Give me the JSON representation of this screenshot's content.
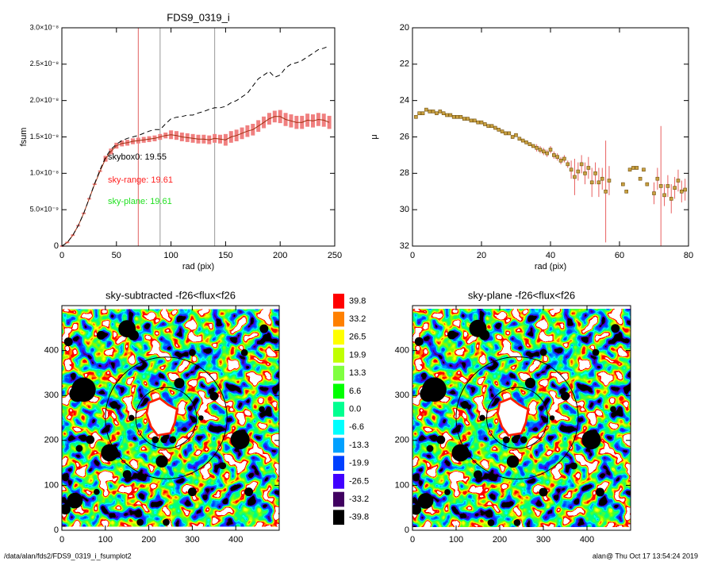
{
  "chart_data": [
    {
      "type": "line",
      "title": "FDS9_0319_i",
      "xlabel": "rad (pix)",
      "ylabel": "fsum",
      "xlim": [
        0,
        250
      ],
      "ylim": [
        0,
        3e-08
      ],
      "xticks": [
        0,
        50,
        100,
        150,
        200,
        250
      ],
      "yticks": [
        0,
        {
          "value": 5e-09,
          "label": "5.0×10⁻⁹"
        },
        {
          "value": 1e-08,
          "label": "1.0×10⁻⁸"
        },
        {
          "value": 1.5e-08,
          "label": "1.5×10⁻⁸"
        },
        {
          "value": 2e-08,
          "label": "2.0×10⁻⁸"
        },
        {
          "value": 2.5e-08,
          "label": "2.5×10⁻⁸"
        },
        {
          "value": 3e-08,
          "label": "3.0×10⁻⁸"
        }
      ],
      "x": [
        0,
        5,
        10,
        15,
        20,
        25,
        30,
        35,
        40,
        45,
        50,
        55,
        60,
        65,
        70,
        75,
        80,
        85,
        90,
        95,
        100,
        105,
        110,
        115,
        120,
        125,
        130,
        135,
        140,
        145,
        150,
        155,
        160,
        165,
        170,
        175,
        180,
        185,
        190,
        195,
        200,
        205,
        210,
        215,
        220,
        225,
        230,
        235,
        240,
        245
      ],
      "series": [
        {
          "color": "#a03010",
          "error_color": "#f08080",
          "dash": false,
          "values": [
            0,
            5e-10,
            1.5e-09,
            2.8e-09,
            4.5e-09,
            6.5e-09,
            8.5e-09,
            1.03e-08,
            1.2e-08,
            1.3e-08,
            1.38e-08,
            1.41e-08,
            1.42e-08,
            1.44e-08,
            1.45e-08,
            1.46e-08,
            1.47e-08,
            1.48e-08,
            1.5e-08,
            1.52e-08,
            1.53e-08,
            1.52e-08,
            1.5e-08,
            1.49e-08,
            1.48e-08,
            1.47e-08,
            1.47e-08,
            1.46e-08,
            1.48e-08,
            1.47e-08,
            1.46e-08,
            1.5e-08,
            1.52e-08,
            1.55e-08,
            1.58e-08,
            1.6e-08,
            1.65e-08,
            1.7e-08,
            1.75e-08,
            1.78e-08,
            1.78e-08,
            1.74e-08,
            1.72e-08,
            1.7e-08,
            1.7e-08,
            1.73e-08,
            1.72e-08,
            1.74e-08,
            1.73e-08,
            1.7e-08
          ],
          "errors": [
            1e-10,
            1e-10,
            1e-10,
            1e-10,
            1e-10,
            1e-10,
            1e-10,
            1e-10,
            4e-10,
            4e-10,
            4e-10,
            4e-10,
            4e-10,
            4e-10,
            4e-10,
            4e-10,
            4e-10,
            4e-10,
            4e-10,
            4e-10,
            6e-10,
            6e-10,
            6e-10,
            6e-10,
            6e-10,
            6e-10,
            6e-10,
            6e-10,
            6e-10,
            6e-10,
            8e-10,
            8e-10,
            8e-10,
            8e-10,
            8e-10,
            8e-10,
            8e-10,
            8e-10,
            8e-10,
            8e-10,
            9e-10,
            9e-10,
            9e-10,
            9e-10,
            9e-10,
            9e-10,
            9e-10,
            9e-10,
            9e-10,
            9e-10
          ]
        },
        {
          "color": "#000000",
          "dash": true,
          "values": [
            0,
            5e-10,
            1.5e-09,
            2.8e-09,
            4.5e-09,
            6.5e-09,
            8.6e-09,
            1.05e-08,
            1.22e-08,
            1.33e-08,
            1.4e-08,
            1.45e-08,
            1.48e-08,
            1.5e-08,
            1.52e-08,
            1.55e-08,
            1.58e-08,
            1.6e-08,
            1.6e-08,
            1.68e-08,
            1.75e-08,
            1.77e-08,
            1.78e-08,
            1.8e-08,
            1.8e-08,
            1.83e-08,
            1.85e-08,
            1.88e-08,
            1.9e-08,
            1.9e-08,
            1.92e-08,
            1.97e-08,
            2e-08,
            2.05e-08,
            2.1e-08,
            2.2e-08,
            2.3e-08,
            2.35e-08,
            2.4e-08,
            2.32e-08,
            2.35e-08,
            2.45e-08,
            2.5e-08,
            2.52e-08,
            2.55e-08,
            2.6e-08,
            2.65e-08,
            2.7e-08,
            2.72e-08,
            2.75e-08
          ]
        }
      ],
      "vlines": [
        {
          "value": 70,
          "color": "#e06060"
        },
        {
          "value": 90,
          "color": "#999999"
        },
        {
          "value": 140,
          "color": "#999999"
        }
      ],
      "annotations": [
        {
          "text": "skybox0: 19.55",
          "color": "#000000"
        },
        {
          "text": "sky-range: 19.61",
          "color": "#ff2020"
        },
        {
          "text": "sky-plane: 19.61",
          "color": "#20e020"
        }
      ]
    },
    {
      "type": "scatter",
      "xlabel": "rad (pix)",
      "ylabel": "μ",
      "xlim": [
        0,
        80
      ],
      "ylim": [
        32,
        20
      ],
      "xticks": [
        0,
        20,
        40,
        60,
        80
      ],
      "yticks": [
        20,
        22,
        24,
        26,
        28,
        30,
        32
      ],
      "color": "#c8a040",
      "error_color": "#e86060",
      "x": [
        1,
        2,
        3,
        4,
        5,
        6,
        7,
        8,
        9,
        10,
        11,
        12,
        13,
        14,
        15,
        16,
        17,
        18,
        19,
        20,
        21,
        22,
        23,
        24,
        25,
        26,
        27,
        28,
        29,
        30,
        31,
        32,
        33,
        34,
        35,
        36,
        37,
        38,
        39,
        40,
        41,
        42,
        43,
        44,
        45,
        46,
        47,
        48,
        49,
        50,
        51,
        52,
        53,
        54,
        55,
        56,
        57,
        61,
        62,
        63,
        64,
        65,
        66,
        67,
        68,
        70,
        71,
        72,
        73,
        74,
        75,
        76,
        77,
        78,
        79
      ],
      "values": [
        24.9,
        24.7,
        24.7,
        24.5,
        24.6,
        24.6,
        24.7,
        24.6,
        24.7,
        24.8,
        24.8,
        24.9,
        24.9,
        24.9,
        25.0,
        25.0,
        25.1,
        25.1,
        25.2,
        25.2,
        25.3,
        25.4,
        25.4,
        25.5,
        25.6,
        25.7,
        25.8,
        25.8,
        26.0,
        25.9,
        26.1,
        26.2,
        26.3,
        26.4,
        26.5,
        26.6,
        26.7,
        26.8,
        26.9,
        26.7,
        27.0,
        27.1,
        27.3,
        27.2,
        27.5,
        27.8,
        28.2,
        27.9,
        27.5,
        28.0,
        27.7,
        28.5,
        28.0,
        28.5,
        28.3,
        29.0,
        28.4,
        28.6,
        29.0,
        27.8,
        27.7,
        27.7,
        28.3,
        27.8,
        28.6,
        29.1,
        28.3,
        28.7,
        29.2,
        28.7,
        29.4,
        28.8,
        28.4,
        29.0,
        28.9
      ],
      "errors": [
        0.05,
        0.05,
        0.05,
        0.05,
        0.05,
        0.05,
        0.05,
        0.05,
        0.05,
        0.05,
        0.05,
        0.05,
        0.05,
        0.05,
        0.05,
        0.05,
        0.05,
        0.05,
        0.05,
        0.05,
        0.1,
        0.1,
        0.1,
        0.1,
        0.1,
        0.1,
        0.1,
        0.1,
        0.1,
        0.1,
        0.1,
        0.1,
        0.1,
        0.1,
        0.1,
        0.2,
        0.2,
        0.2,
        0.2,
        0.2,
        0.2,
        0.2,
        0.2,
        0.2,
        0.2,
        0.5,
        1.0,
        0.5,
        0.5,
        0.6,
        0.6,
        0.8,
        0.6,
        0.8,
        0.6,
        2.8,
        0.8,
        0.1,
        0.1,
        0.1,
        0.1,
        0.1,
        0.1,
        0.1,
        0.1,
        0.6,
        0.6,
        3.3,
        0.6,
        0.6,
        0.8,
        0.6,
        0.6,
        0.6,
        0.6
      ]
    },
    {
      "type": "image",
      "title": "sky-subtracted -f26<flux<f26",
      "xlim": [
        0,
        500
      ],
      "ylim": [
        0,
        500
      ],
      "xticks": [
        0,
        100,
        200,
        300,
        400
      ],
      "yticks": [
        0,
        100,
        200,
        300,
        400
      ],
      "aperture_center": [
        240,
        250
      ],
      "aperture_radii": [
        70,
        140
      ]
    },
    {
      "type": "image",
      "title": "sky-plane -f26<flux<f26",
      "xlim": [
        0,
        500
      ],
      "ylim": [
        0,
        500
      ],
      "xticks": [
        0,
        100,
        200,
        300,
        400
      ],
      "yticks": [
        0,
        100,
        200,
        300,
        400
      ],
      "aperture_center": [
        240,
        250
      ],
      "aperture_radii": [
        70,
        140
      ]
    }
  ],
  "colorbar": {
    "levels": [
      39.8,
      33.2,
      26.5,
      19.9,
      13.3,
      6.6,
      {
        "value": 0,
        "label": "0.0"
      },
      -6.6,
      -13.3,
      -19.9,
      -26.5,
      -33.2,
      -39.8
    ],
    "colors": [
      "#ff0000",
      "#ff8000",
      "#ffff00",
      "#c0ff00",
      "#80ff40",
      "#00ff00",
      "#00ff90",
      "#00ffff",
      "#00a0ff",
      "#0040ff",
      "#4000ff",
      "#400060",
      "#000000"
    ]
  },
  "footer": {
    "path": "/data/alan/fds2/FDS9_0319_i_fsumplot2",
    "stamp": "alan@  Thu Oct 17 13:54:24 2019"
  }
}
